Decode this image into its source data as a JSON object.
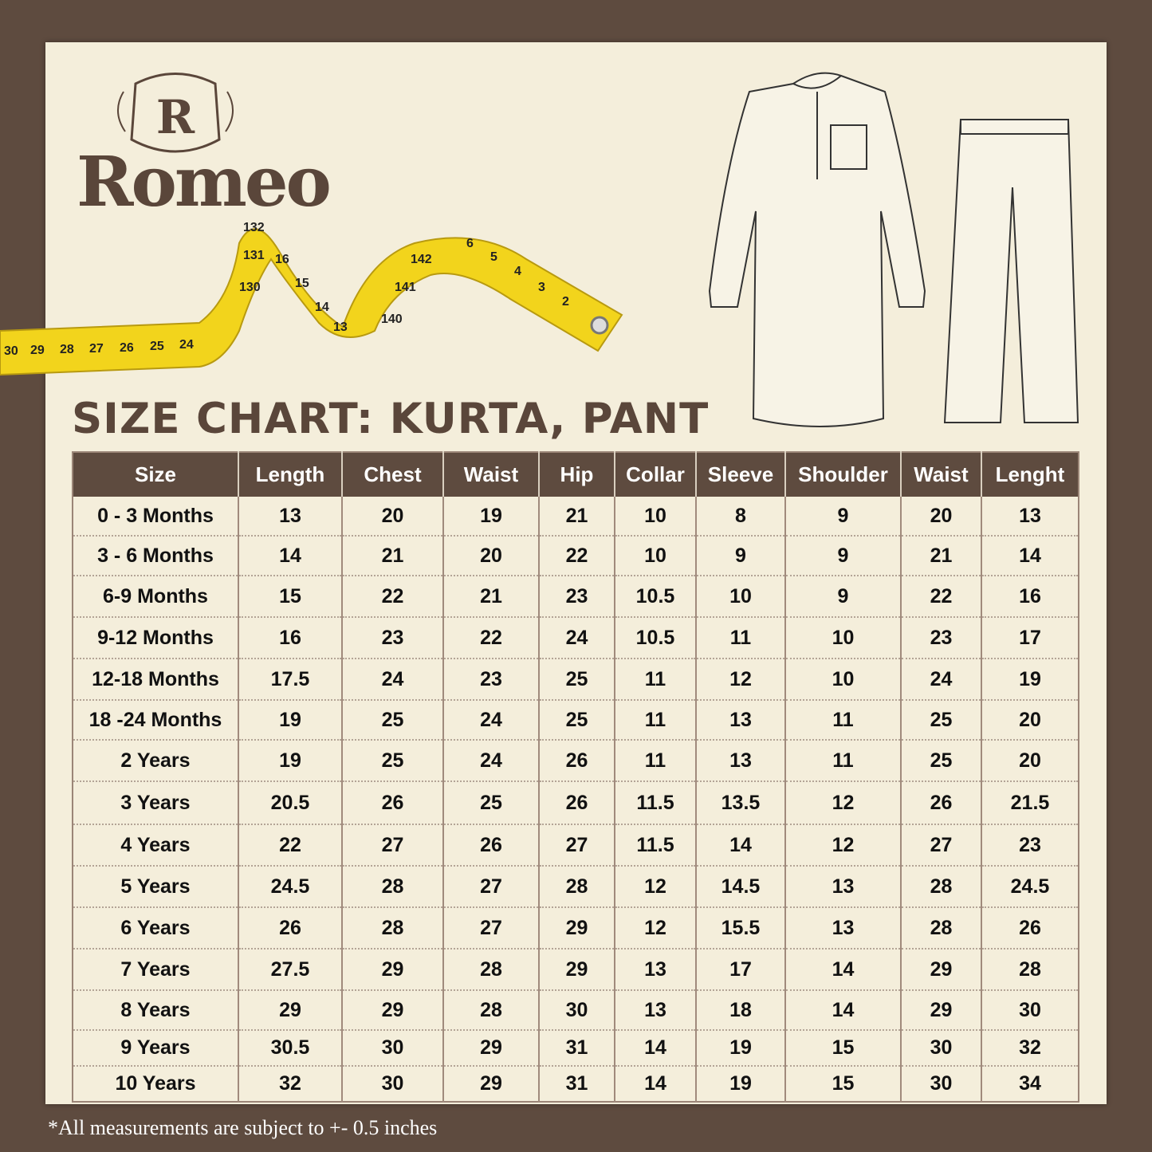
{
  "brand": {
    "name": "Romeo",
    "monogram": "R"
  },
  "title": "SIZE CHART: KURTA, PANT",
  "tape_numbers": [
    "30",
    "29",
    "28",
    "27",
    "26",
    "25",
    "24",
    "130",
    "131",
    "132",
    "16",
    "15",
    "14",
    "13",
    "140",
    "141",
    "142",
    "6",
    "5",
    "4",
    "3",
    "2"
  ],
  "table": {
    "headers": [
      "Size",
      "Length",
      "Chest",
      "Waist",
      "Hip",
      "Collar",
      "Sleeve",
      "Shoulder",
      "Waist",
      "Lenght"
    ],
    "rows": [
      [
        "0 - 3 Months",
        "13",
        "20",
        "19",
        "21",
        "10",
        "8",
        "9",
        "20",
        "13"
      ],
      [
        "3 - 6 Months",
        "14",
        "21",
        "20",
        "22",
        "10",
        "9",
        "9",
        "21",
        "14"
      ],
      [
        "6-9 Months",
        "15",
        "22",
        "21",
        "23",
        "10.5",
        "10",
        "9",
        "22",
        "16"
      ],
      [
        "9-12 Months",
        "16",
        "23",
        "22",
        "24",
        "10.5",
        "11",
        "10",
        "23",
        "17"
      ],
      [
        "12-18 Months",
        "17.5",
        "24",
        "23",
        "25",
        "11",
        "12",
        "10",
        "24",
        "19"
      ],
      [
        "18 -24 Months",
        "19",
        "25",
        "24",
        "25",
        "11",
        "13",
        "11",
        "25",
        "20"
      ],
      [
        "2 Years",
        "19",
        "25",
        "24",
        "26",
        "11",
        "13",
        "11",
        "25",
        "20"
      ],
      [
        "3 Years",
        "20.5",
        "26",
        "25",
        "26",
        "11.5",
        "13.5",
        "12",
        "26",
        "21.5"
      ],
      [
        "4 Years",
        "22",
        "27",
        "26",
        "27",
        "11.5",
        "14",
        "12",
        "27",
        "23"
      ],
      [
        "5 Years",
        "24.5",
        "28",
        "27",
        "28",
        "12",
        "14.5",
        "13",
        "28",
        "24.5"
      ],
      [
        "6 Years",
        "26",
        "28",
        "27",
        "29",
        "12",
        "15.5",
        "13",
        "28",
        "26"
      ],
      [
        "7 Years",
        "27.5",
        "29",
        "28",
        "29",
        "13",
        "17",
        "14",
        "29",
        "28"
      ],
      [
        "8 Years",
        "29",
        "29",
        "28",
        "30",
        "13",
        "18",
        "14",
        "29",
        "30"
      ],
      [
        "9 Years",
        "30.5",
        "30",
        "29",
        "31",
        "14",
        "19",
        "15",
        "30",
        "32"
      ],
      [
        "10 Years",
        "32",
        "30",
        "29",
        "31",
        "14",
        "19",
        "15",
        "30",
        "34"
      ]
    ]
  },
  "footnote": "*All measurements are subject to +- 0.5 inches",
  "colors": {
    "background": "#5e4b3f",
    "paper": "#f4eedb",
    "header": "#5e4b3f",
    "tape": "#f2d41c"
  }
}
